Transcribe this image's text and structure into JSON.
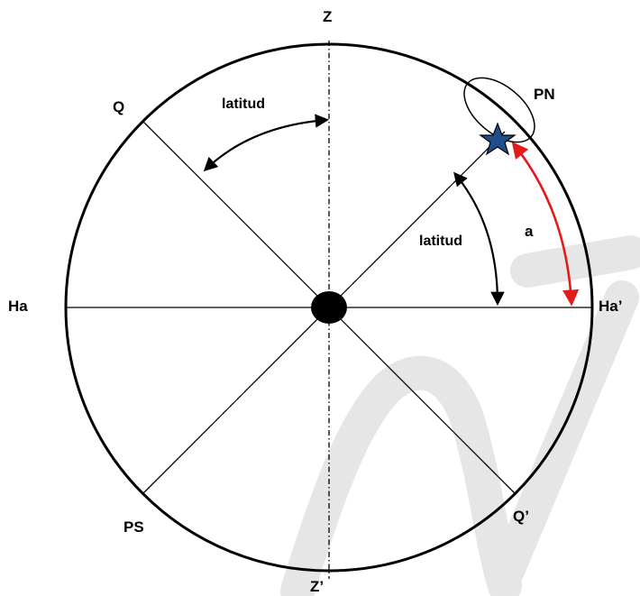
{
  "labels": {
    "zenith": "Z",
    "nadir": "Z’",
    "horizon_west": "Ha",
    "horizon_east": "Ha’",
    "equator_upper": "Q",
    "equator_lower": "Q’",
    "north_pole": "PN",
    "south_pole": "PS",
    "latitude_upper": "latitud",
    "latitude_right": "latitud",
    "altitude": "a"
  },
  "colors": {
    "line": "#000000",
    "altitude_arc": "#e31b1b",
    "star_fill": "#1f4e8c",
    "watermark": "#e6e6e6"
  },
  "icons": {
    "star": "star-icon"
  }
}
